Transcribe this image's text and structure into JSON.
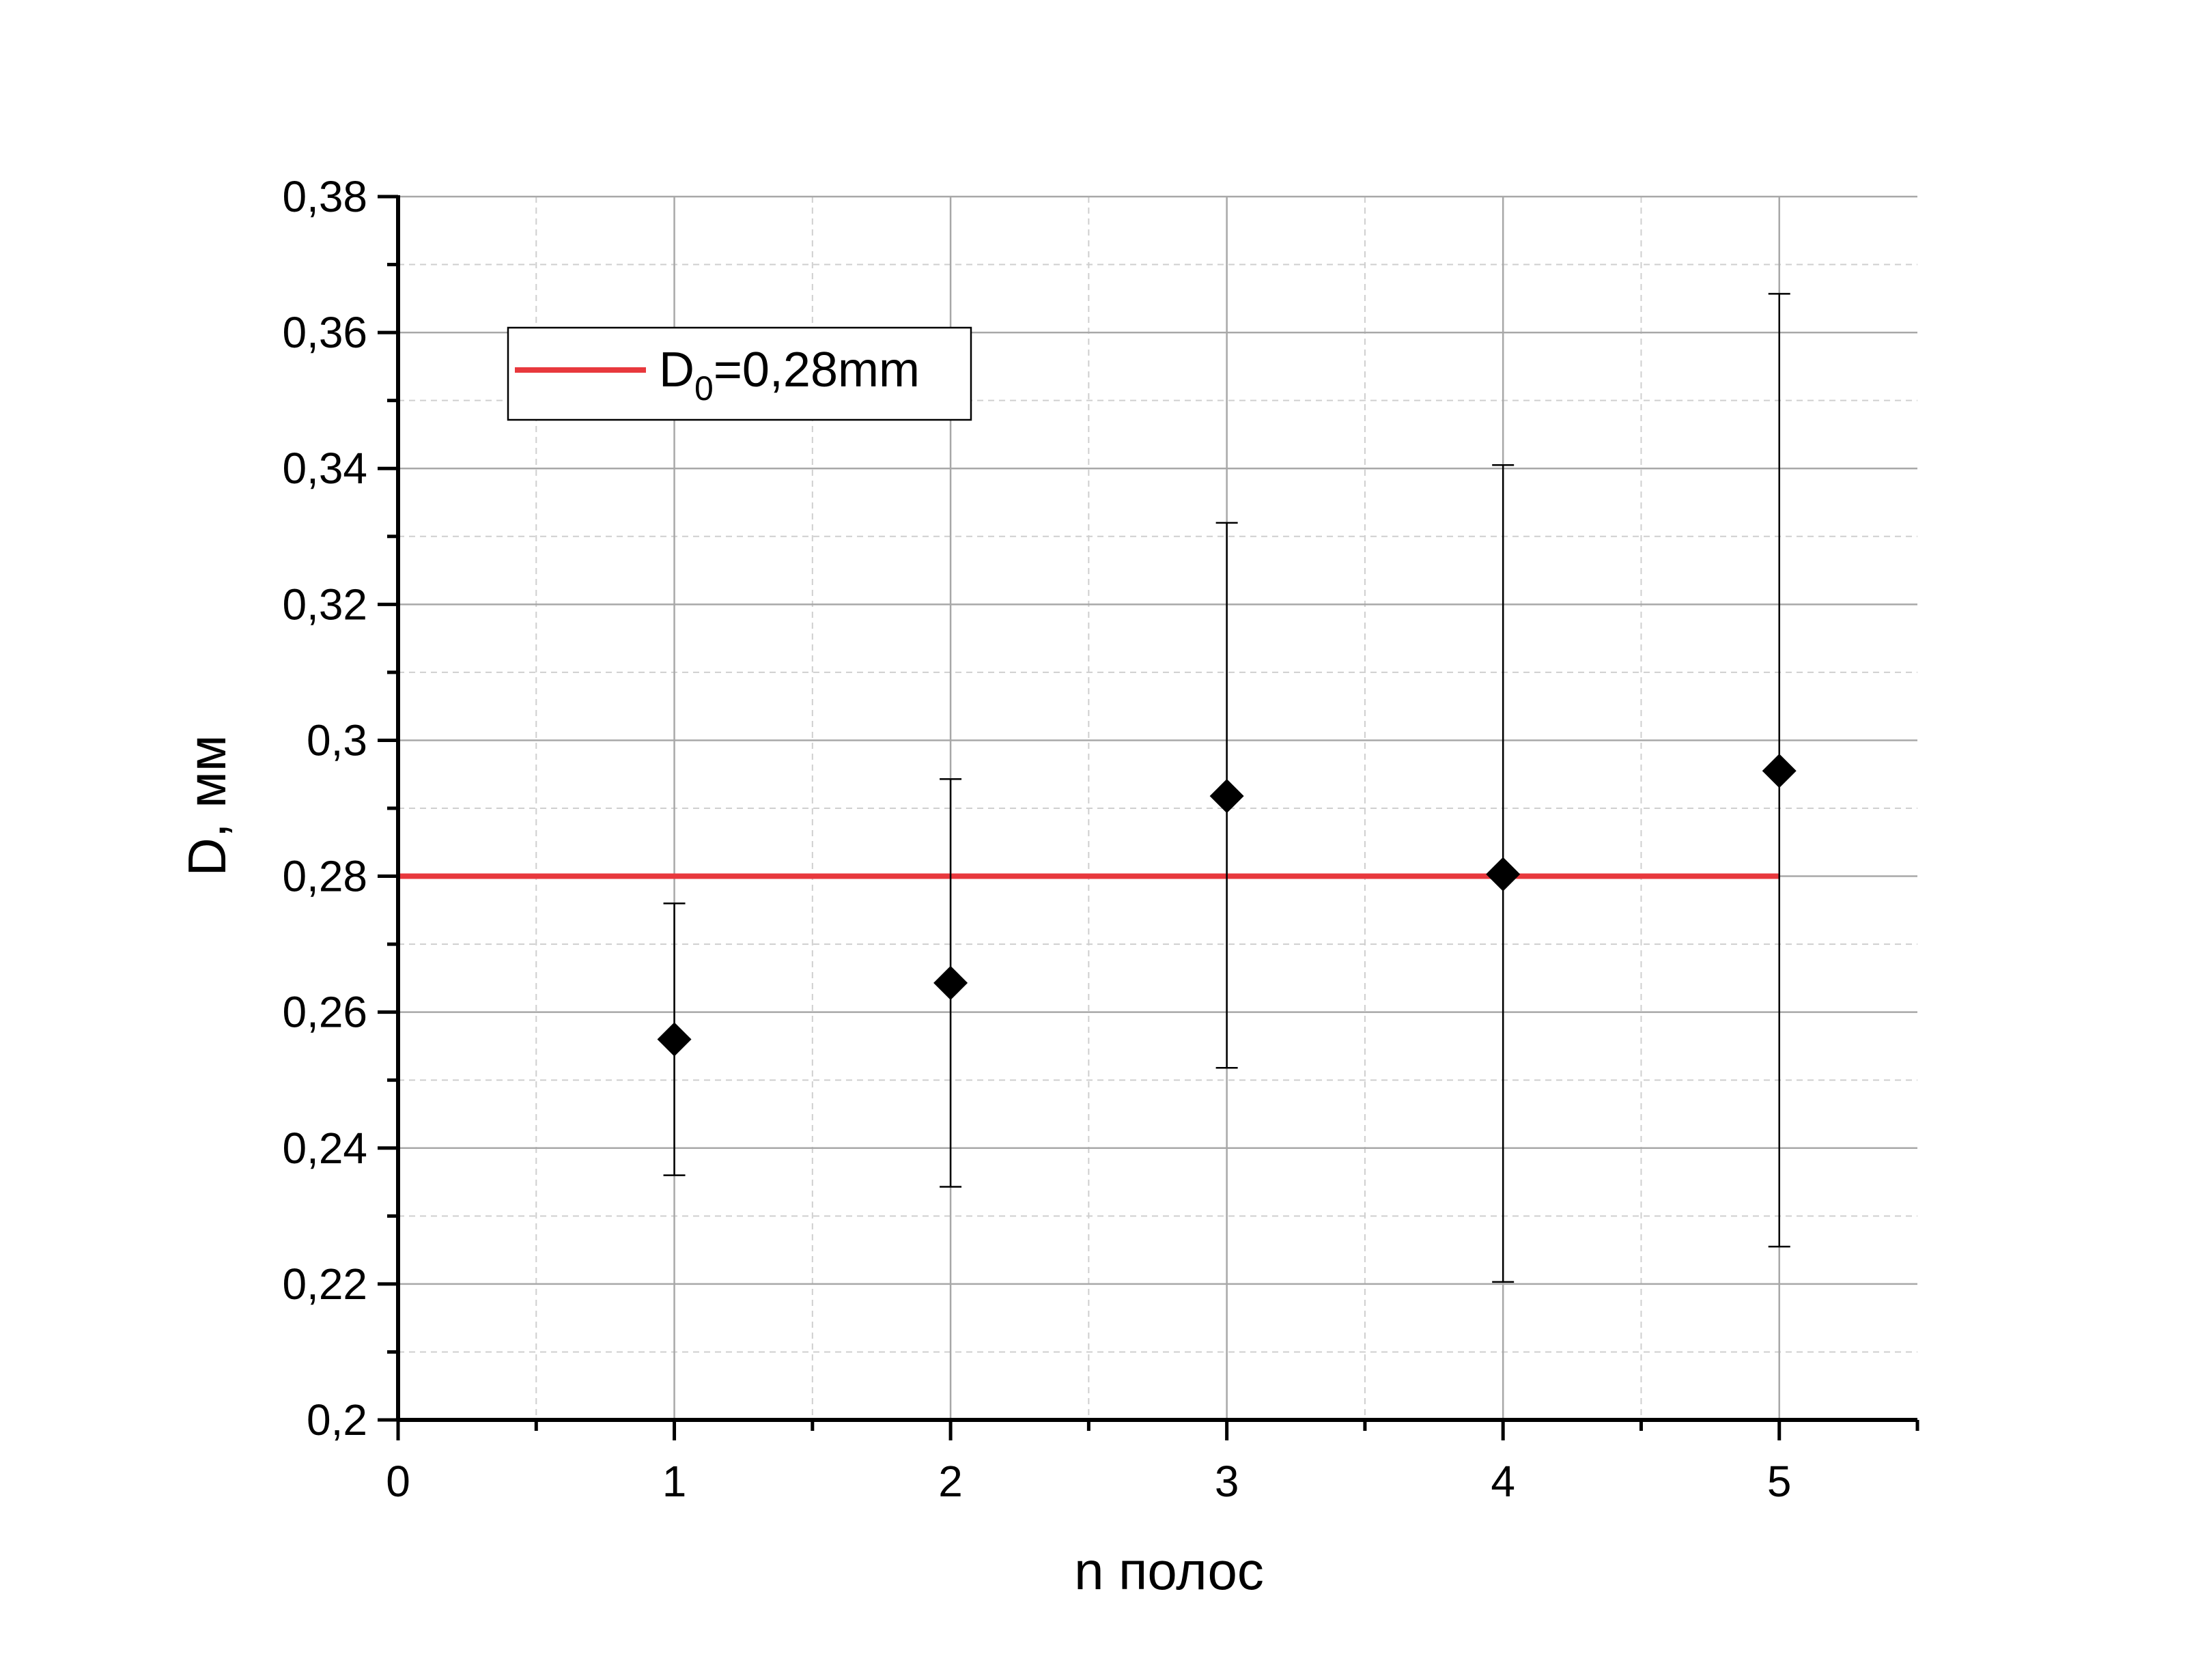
{
  "chart_data": {
    "type": "scatter",
    "xlabel": "n полос",
    "ylabel": "D, мм",
    "xlim": [
      0,
      5.5
    ],
    "ylim": [
      0.2,
      0.38
    ],
    "x_ticks": [
      0,
      1,
      2,
      3,
      4,
      5
    ],
    "x_tick_labels": [
      "0",
      "1",
      "2",
      "3",
      "4",
      "5"
    ],
    "y_ticks": [
      0.2,
      0.22,
      0.24,
      0.26,
      0.28,
      0.3,
      0.32,
      0.34,
      0.36,
      0.38
    ],
    "y_tick_labels": [
      "0,2",
      "0,22",
      "0,24",
      "0,26",
      "0,28",
      "0,3",
      "0,32",
      "0,34",
      "0,36",
      "0,38"
    ],
    "grid": true,
    "legend_position": "top-left",
    "series": [
      {
        "marker": "diamond",
        "color": "#000000",
        "x": [
          1,
          2,
          3,
          4,
          5
        ],
        "y": [
          0.256,
          0.2643,
          0.2918,
          0.2803,
          0.2955
        ],
        "y_err_upper": [
          0.276,
          0.2943,
          0.332,
          0.3405,
          0.3657
        ],
        "y_err_lower": [
          0.236,
          0.2343,
          0.2518,
          0.2203,
          0.2255
        ]
      }
    ],
    "reference_line": {
      "legend": {
        "prefix": "D",
        "subscript": "0",
        "suffix": "=0,28mm"
      },
      "y": 0.28,
      "x_range": [
        0,
        5
      ],
      "color": "#e8383d"
    }
  }
}
